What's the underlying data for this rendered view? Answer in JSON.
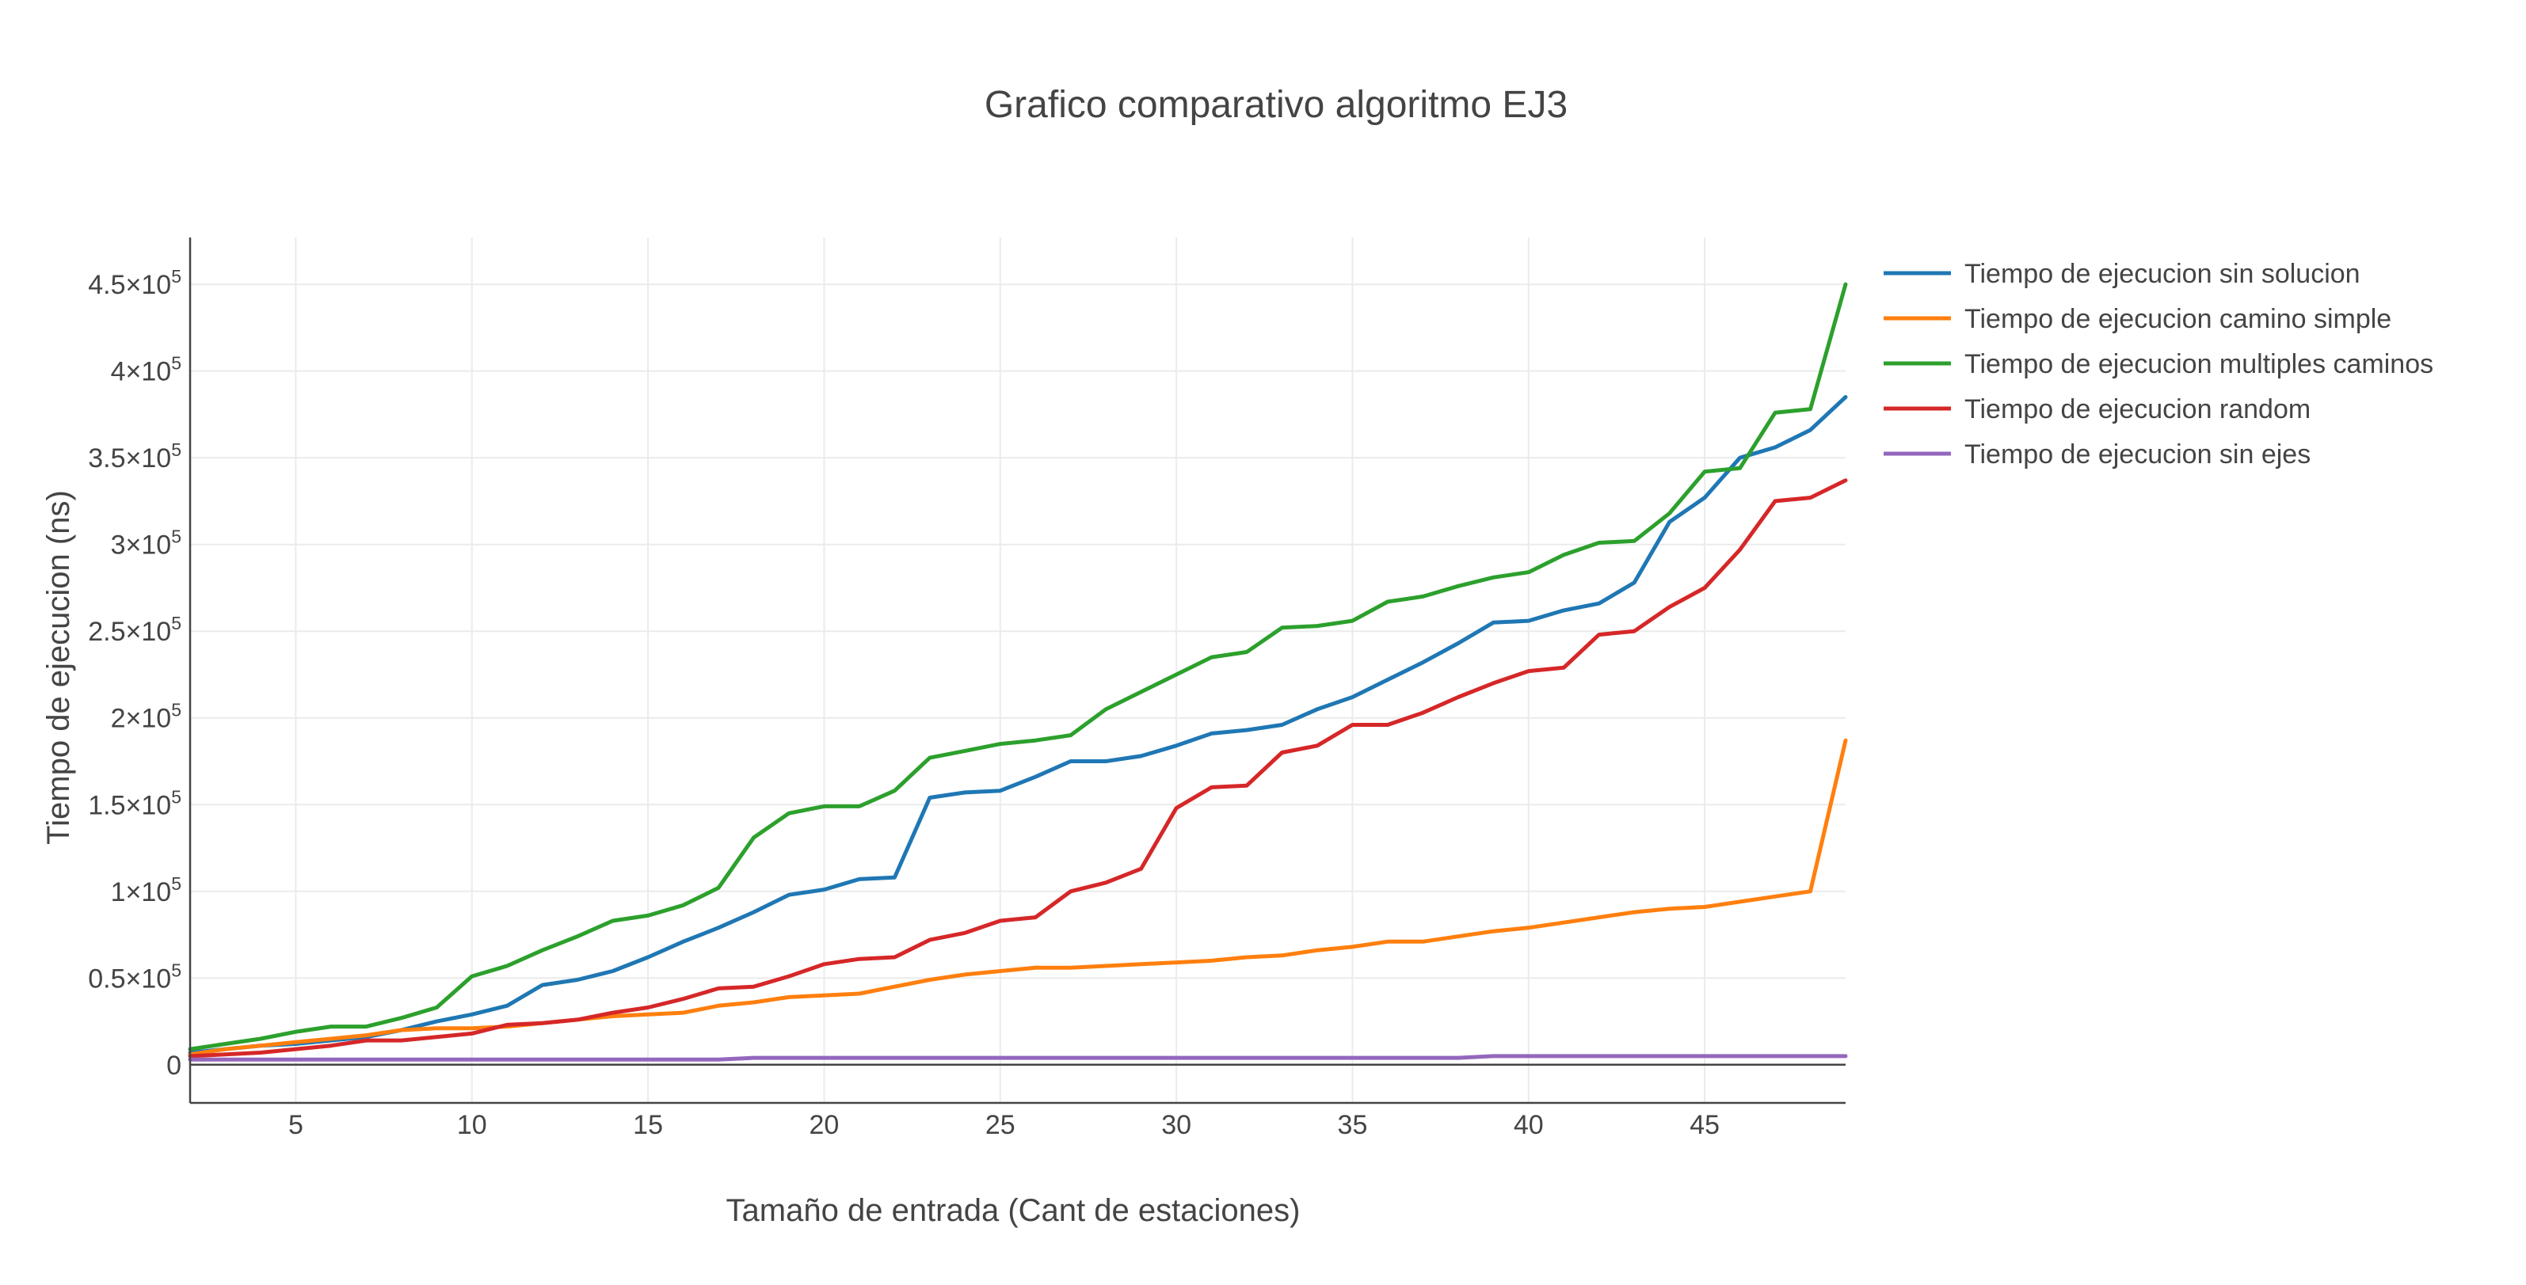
{
  "chart_data": {
    "type": "line",
    "title": "Grafico comparativo algoritmo EJ3",
    "xlabel": "Tamaño de entrada (Cant de estaciones)",
    "ylabel": "Tiempo de ejecucion (ns)",
    "xlim": [
      2,
      49
    ],
    "ylim": [
      -22000,
      477000
    ],
    "grid": true,
    "legend": "right",
    "x_ticks": [
      5,
      10,
      15,
      20,
      25,
      30,
      35,
      40,
      45
    ],
    "y_ticks": [
      {
        "value": 0,
        "mant": "0",
        "exp": ""
      },
      {
        "value": 50000,
        "mant": "0.5×10",
        "exp": "5"
      },
      {
        "value": 100000,
        "mant": "1×10",
        "exp": "5"
      },
      {
        "value": 150000,
        "mant": "1.5×10",
        "exp": "5"
      },
      {
        "value": 200000,
        "mant": "2×10",
        "exp": "5"
      },
      {
        "value": 250000,
        "mant": "2.5×10",
        "exp": "5"
      },
      {
        "value": 300000,
        "mant": "3×10",
        "exp": "5"
      },
      {
        "value": 350000,
        "mant": "3.5×10",
        "exp": "5"
      },
      {
        "value": 400000,
        "mant": "4×10",
        "exp": "5"
      },
      {
        "value": 450000,
        "mant": "4.5×10",
        "exp": "5"
      }
    ],
    "x": [
      2,
      3,
      4,
      5,
      6,
      7,
      8,
      9,
      10,
      11,
      12,
      13,
      14,
      15,
      16,
      17,
      18,
      19,
      20,
      21,
      22,
      23,
      24,
      25,
      26,
      27,
      28,
      29,
      30,
      31,
      32,
      33,
      34,
      35,
      36,
      37,
      38,
      39,
      40,
      41,
      42,
      43,
      44,
      45,
      46,
      47,
      48,
      49
    ],
    "series": [
      {
        "name": "Tiempo de ejecucion sin solucion",
        "color": "#1f77b4",
        "values": [
          7000,
          9000,
          11000,
          12000,
          14000,
          16000,
          20000,
          25000,
          29000,
          34000,
          46000,
          49000,
          54000,
          62000,
          71000,
          79000,
          88000,
          98000,
          101000,
          107000,
          108000,
          154000,
          157000,
          158000,
          166000,
          175000,
          175000,
          178000,
          184000,
          191000,
          193000,
          196000,
          205000,
          212000,
          222000,
          232000,
          243000,
          255000,
          256000,
          262000,
          266000,
          278000,
          313000,
          327000,
          350000,
          356000,
          366000,
          385000
        ]
      },
      {
        "name": "Tiempo de ejecucion camino simple",
        "color": "#ff7f0e",
        "values": [
          6000,
          9000,
          11000,
          13000,
          15000,
          17000,
          20000,
          21000,
          21000,
          22000,
          24000,
          26000,
          28000,
          29000,
          30000,
          34000,
          36000,
          39000,
          40000,
          41000,
          45000,
          49000,
          52000,
          54000,
          56000,
          56000,
          57000,
          58000,
          59000,
          60000,
          62000,
          63000,
          66000,
          68000,
          71000,
          71000,
          74000,
          77000,
          79000,
          82000,
          85000,
          88000,
          90000,
          91000,
          94000,
          97000,
          100000,
          187000
        ]
      },
      {
        "name": "Tiempo de ejecucion multiples caminos",
        "color": "#2ca02c",
        "values": [
          9000,
          12000,
          15000,
          19000,
          22000,
          22000,
          27000,
          33000,
          51000,
          57000,
          66000,
          74000,
          83000,
          86000,
          92000,
          102000,
          131000,
          145000,
          149000,
          149000,
          158000,
          177000,
          181000,
          185000,
          187000,
          190000,
          205000,
          215000,
          225000,
          235000,
          238000,
          252000,
          253000,
          256000,
          267000,
          270000,
          276000,
          281000,
          284000,
          294000,
          301000,
          302000,
          318000,
          342000,
          344000,
          376000,
          378000,
          450000
        ]
      },
      {
        "name": "Tiempo de ejecucion random",
        "color": "#d62728",
        "values": [
          5000,
          6000,
          7000,
          9000,
          11000,
          14000,
          14000,
          16000,
          18000,
          23000,
          24000,
          26000,
          30000,
          33000,
          38000,
          44000,
          45000,
          51000,
          58000,
          61000,
          62000,
          72000,
          76000,
          83000,
          85000,
          100000,
          105000,
          113000,
          148000,
          160000,
          161000,
          180000,
          184000,
          196000,
          196000,
          203000,
          212000,
          220000,
          227000,
          229000,
          248000,
          250000,
          264000,
          275000,
          297000,
          325000,
          327000,
          337000
        ]
      },
      {
        "name": "Tiempo de ejecucion sin ejes",
        "color": "#9467bd",
        "values": [
          3000,
          3000,
          3000,
          3000,
          3000,
          3000,
          3000,
          3000,
          3000,
          3000,
          3000,
          3000,
          3000,
          3000,
          3000,
          3000,
          4000,
          4000,
          4000,
          4000,
          4000,
          4000,
          4000,
          4000,
          4000,
          4000,
          4000,
          4000,
          4000,
          4000,
          4000,
          4000,
          4000,
          4000,
          4000,
          4000,
          4000,
          5000,
          5000,
          5000,
          5000,
          5000,
          5000,
          5000,
          5000,
          5000,
          5000,
          5000
        ]
      }
    ]
  }
}
